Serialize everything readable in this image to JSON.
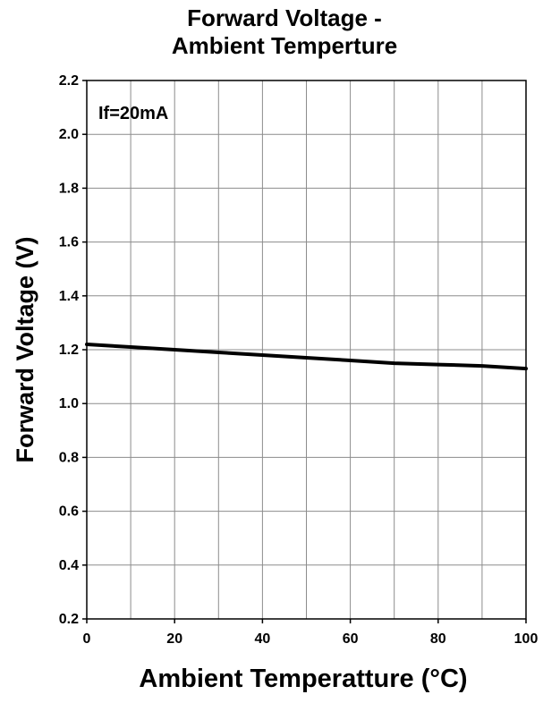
{
  "chart_data": {
    "type": "line",
    "title": [
      "Forward Voltage -",
      "Ambient Temperture"
    ],
    "xlabel": "Ambient Temperatture (°C)",
    "ylabel": "Forward Voltage (V)",
    "xlim": [
      0,
      100
    ],
    "ylim": [
      0.2,
      2.2
    ],
    "xticks": [
      0,
      20,
      40,
      60,
      80,
      100
    ],
    "xtick_labels": [
      "0",
      "20",
      "40",
      "60",
      "80",
      "100"
    ],
    "x_minor_grid_step": 10,
    "yticks": [
      0.2,
      0.4,
      0.6,
      0.8,
      1.0,
      1.2,
      1.4,
      1.6,
      1.8,
      2.0,
      2.2
    ],
    "ytick_labels": [
      "0.2",
      "0.4",
      "0.6",
      "0.8",
      "1.0",
      "1.2",
      "1.4",
      "1.6",
      "1.8",
      "2.0",
      "2.2"
    ],
    "grid": true,
    "annotation": "If=20mA",
    "series": [
      {
        "color": "#000000",
        "x": [
          0,
          10,
          20,
          30,
          40,
          50,
          60,
          70,
          80,
          90,
          100
        ],
        "y": [
          1.22,
          1.21,
          1.2,
          1.19,
          1.18,
          1.17,
          1.16,
          1.15,
          1.145,
          1.14,
          1.13
        ]
      }
    ]
  }
}
